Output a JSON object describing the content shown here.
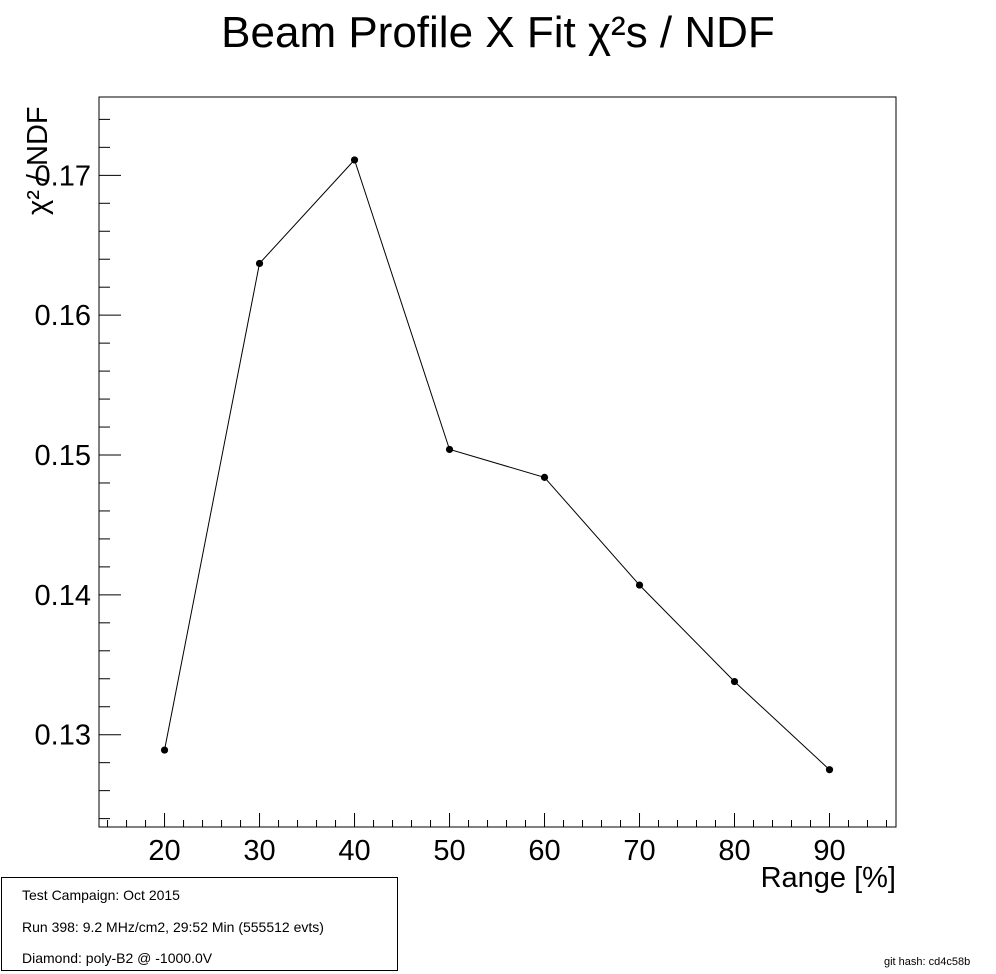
{
  "chart_data": {
    "type": "line",
    "title": "Beam Profile X Fit χ²s / NDF",
    "xlabel": "Range [%]",
    "ylabel": "χ² / NDF",
    "x": [
      20,
      30,
      40,
      50,
      60,
      70,
      80,
      90
    ],
    "series": [
      {
        "values": [
          0.1289,
          0.1637,
          0.1711,
          0.1504,
          0.1484,
          0.1407,
          0.1338,
          0.1275
        ]
      }
    ],
    "xlim": [
      13.1,
      97.0
    ],
    "ylim": [
      0.1234,
      0.1756
    ],
    "xticks": [
      20,
      30,
      40,
      50,
      60,
      70,
      80,
      90
    ],
    "xtick_labels": [
      "20",
      "30",
      "40",
      "50",
      "60",
      "70",
      "80",
      "90"
    ],
    "yticks": [
      0.13,
      0.14,
      0.15,
      0.16,
      0.17
    ],
    "ytick_labels": [
      "0.13",
      "0.14",
      "0.15",
      "0.16",
      "0.17"
    ],
    "grid": false,
    "line_color": "#000000",
    "marker_color": "#000000"
  },
  "info": {
    "line1": "Test Campaign: Oct 2015",
    "line2": "Run 398: 9.2 MHz/cm2, 29:52 Min (555512 evts)",
    "line3": "Diamond: poly-B2 @ -1000.0V"
  },
  "git_hash": "git hash: cd4c58b"
}
